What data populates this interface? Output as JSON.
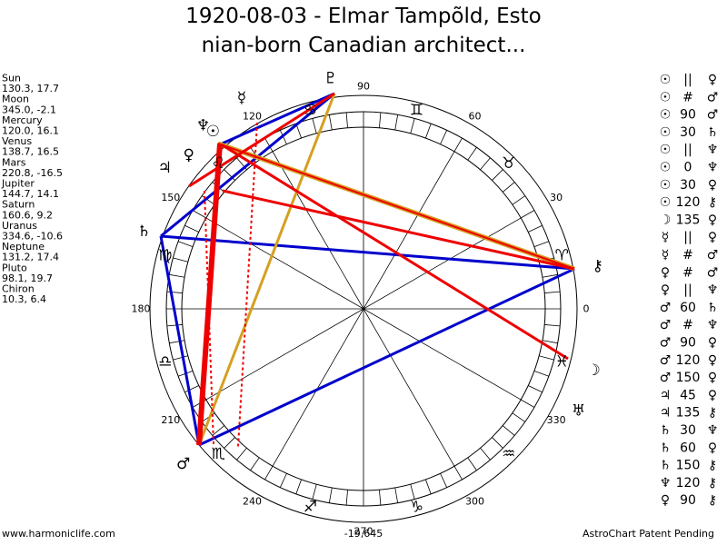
{
  "title": [
    "1920-08-03 - Elmar Tampõld, Esto",
    "nian-born Canadian architect..."
  ],
  "planets": [
    {
      "name": "Sun",
      "glyph": "☉",
      "coords": "130.3, 17.7"
    },
    {
      "name": "Moon",
      "glyph": "☽",
      "coords": "345.0, -2.1"
    },
    {
      "name": "Mercury",
      "glyph": "☿",
      "coords": "120.0, 16.1"
    },
    {
      "name": "Venus",
      "glyph": "♀",
      "coords": "138.7, 16.5"
    },
    {
      "name": "Mars",
      "glyph": "♂",
      "coords": "220.8, -16.5"
    },
    {
      "name": "Jupiter",
      "glyph": "♃",
      "coords": "144.7, 14.1"
    },
    {
      "name": "Saturn",
      "glyph": "♄",
      "coords": "160.6, 9.2"
    },
    {
      "name": "Uranus",
      "glyph": "♅",
      "coords": "334.6, -10.6"
    },
    {
      "name": "Neptune",
      "glyph": "♆",
      "coords": "131.2, 17.4"
    },
    {
      "name": "Pluto",
      "glyph": "♇",
      "coords": "98.1, 19.7"
    },
    {
      "name": "Chiron",
      "glyph": "⚷",
      "coords": "10.3, 6.4"
    }
  ],
  "signs": [
    "♈",
    "♉",
    "♊",
    "♋",
    "♌",
    "♍",
    "♎",
    "♏",
    "♐",
    "♑",
    "♒",
    "♓"
  ],
  "degrees": [
    0,
    30,
    60,
    90,
    120,
    150,
    180,
    210,
    240,
    270,
    300,
    330
  ],
  "aspects": [
    [
      "☉",
      "||",
      "♀"
    ],
    [
      "☉",
      "#",
      "♂"
    ],
    [
      "☉",
      "90",
      "♂"
    ],
    [
      "☉",
      "30",
      "♄"
    ],
    [
      "☉",
      "||",
      "♆"
    ],
    [
      "☉",
      "0",
      "♆"
    ],
    [
      "☉",
      "30",
      "♀"
    ],
    [
      "☉",
      "120",
      "⚷"
    ],
    [
      "☽",
      "135",
      "♀"
    ],
    [
      "☿",
      "||",
      "♀"
    ],
    [
      "☿",
      "#",
      "♂"
    ],
    [
      "♀",
      "#",
      "♂"
    ],
    [
      "♀",
      "||",
      "♆"
    ],
    [
      "♂",
      "60",
      "♄"
    ],
    [
      "♂",
      "#",
      "♆"
    ],
    [
      "♂",
      "90",
      "♀"
    ],
    [
      "♂",
      "120",
      "♀"
    ],
    [
      "♂",
      "150",
      "♀"
    ],
    [
      "♃",
      "45",
      "♀"
    ],
    [
      "♃",
      "135",
      "⚷"
    ],
    [
      "♄",
      "30",
      "♆"
    ],
    [
      "♄",
      "60",
      "♀"
    ],
    [
      "♄",
      "150",
      "⚷"
    ],
    [
      "♆",
      "120",
      "⚷"
    ],
    [
      "♀",
      "90",
      "⚷"
    ]
  ],
  "footer": {
    "left": "www.harmoniclife.com",
    "center": "-19,645",
    "right": "AstroChart Patent Pending"
  }
}
